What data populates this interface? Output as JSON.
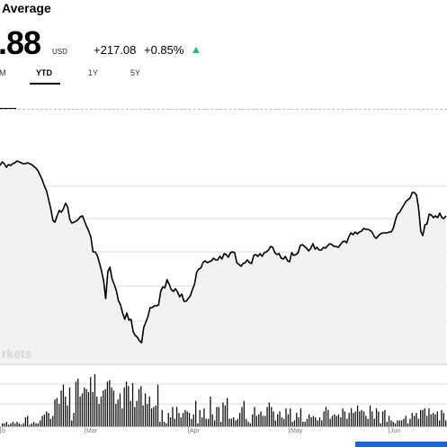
{
  "header": {
    "title": "Average",
    "price": ".88",
    "currency": "USD",
    "change_abs": "+217.08",
    "change_pct": "+0.85%",
    "trend_icon": "triangle-up-icon",
    "up_color": "#2bb673"
  },
  "tabs": [
    {
      "label": "M",
      "active": false
    },
    {
      "label": "YTD",
      "active": true
    },
    {
      "label": "1Y",
      "active": false
    },
    {
      "label": "5Y",
      "active": false
    }
  ],
  "watermark": "rkets",
  "cta_color": "#1a63f2",
  "chart_data": {
    "type": "line",
    "x_tick_labels": [
      "b",
      "Mar",
      "Apr",
      "May",
      "Jun"
    ],
    "series": [
      {
        "values": [
          184,
          180,
          182,
          186,
          183,
          184,
          182,
          181,
          179,
          180,
          181,
          182,
          182,
          181,
          182,
          183,
          185,
          187,
          190,
          195,
          200,
          207,
          212,
          222,
          232,
          245,
          247,
          240,
          234,
          236,
          232,
          226,
          230,
          244,
          248,
          247,
          246,
          244,
          241,
          240,
          246,
          252,
          257,
          264,
          280,
          280,
          284,
          292,
          301,
          312,
          332,
          302,
          297,
          310,
          316,
          323,
          334,
          339,
          348,
          355,
          348,
          356,
          355,
          369,
          373,
          375,
          379,
          381,
          364,
          358,
          352,
          342,
          342,
          340,
          340,
          339,
          324,
          319,
          320,
          311,
          316,
          322,
          324,
          321,
          325,
          330,
          327,
          335,
          335,
          332,
          329,
          322,
          316,
          303,
          299,
          298,
          292,
          290,
          292,
          291,
          290,
          287,
          289,
          289,
          285,
          288,
          282,
          283,
          286,
          281,
          280,
          281,
          292,
          294,
          296,
          293,
          292,
          289,
          292,
          293,
          284,
          283,
          285,
          282,
          285,
          281,
          280,
          278,
          274,
          275,
          281,
          283,
          282,
          287,
          288,
          285,
          290,
          291,
          281,
          284,
          283,
          281,
          273,
          272,
          274,
          276,
          279,
          276,
          271,
          277,
          275,
          278,
          278,
          275,
          276,
          273,
          271,
          272,
          274,
          274,
          275,
          272,
          269,
          268,
          270,
          263,
          259,
          261,
          258,
          260,
          258,
          257,
          254,
          255,
          255,
          256,
          258,
          263,
          265,
          262,
          260,
          259,
          259,
          259,
          258,
          258,
          254,
          245,
          238,
          236,
          232,
          228,
          224,
          222,
          220,
          214,
          214,
          217,
          231,
          257,
          262,
          250,
          249,
          238,
          239,
          242,
          240,
          242,
          237,
          242,
          243,
          240
        ]
      }
    ],
    "volume": [
      2,
      2,
      3,
      1,
      2,
      3,
      2,
      3,
      2,
      1,
      2,
      6,
      7,
      1,
      2,
      3,
      2,
      2,
      4,
      7,
      8,
      10,
      9,
      5,
      7,
      18,
      19,
      15,
      24,
      28,
      20,
      14,
      26,
      4,
      9,
      30,
      32,
      20,
      22,
      26,
      25,
      23,
      33,
      23,
      35,
      20,
      15,
      20,
      24,
      25,
      30,
      31,
      26,
      24,
      15,
      18,
      22,
      12,
      26,
      30,
      27,
      17,
      29,
      13,
      17,
      25,
      27,
      14,
      22,
      15,
      20,
      12,
      13,
      14,
      28,
      3,
      11,
      3,
      2,
      9,
      6,
      13,
      5,
      13,
      9,
      6,
      9,
      11,
      10,
      9,
      5,
      8,
      17,
      2,
      11,
      6,
      12,
      5,
      5,
      20,
      8,
      4,
      13,
      13,
      3,
      16,
      14,
      19,
      5,
      5,
      6,
      4,
      5,
      9,
      13,
      17,
      5,
      3,
      2,
      8,
      13,
      7,
      8,
      10,
      7,
      7,
      13,
      16,
      13,
      10,
      4,
      8,
      10,
      6,
      5,
      12,
      8,
      12,
      3,
      4,
      9,
      6,
      12,
      3,
      3,
      5,
      8,
      6,
      7,
      6,
      4,
      6,
      4,
      10,
      13,
      11,
      5,
      7,
      8,
      7,
      8,
      6,
      12,
      10,
      5,
      9,
      12,
      9,
      10,
      14,
      10,
      11,
      10,
      7,
      5,
      14,
      10,
      5,
      12,
      10,
      2,
      10,
      11,
      3,
      7,
      4,
      3,
      2,
      4,
      4,
      4,
      5,
      7,
      2,
      5,
      9,
      7,
      9,
      5,
      11,
      11,
      12,
      7,
      12,
      8,
      9,
      8,
      10,
      4,
      11,
      9,
      4
    ]
  }
}
